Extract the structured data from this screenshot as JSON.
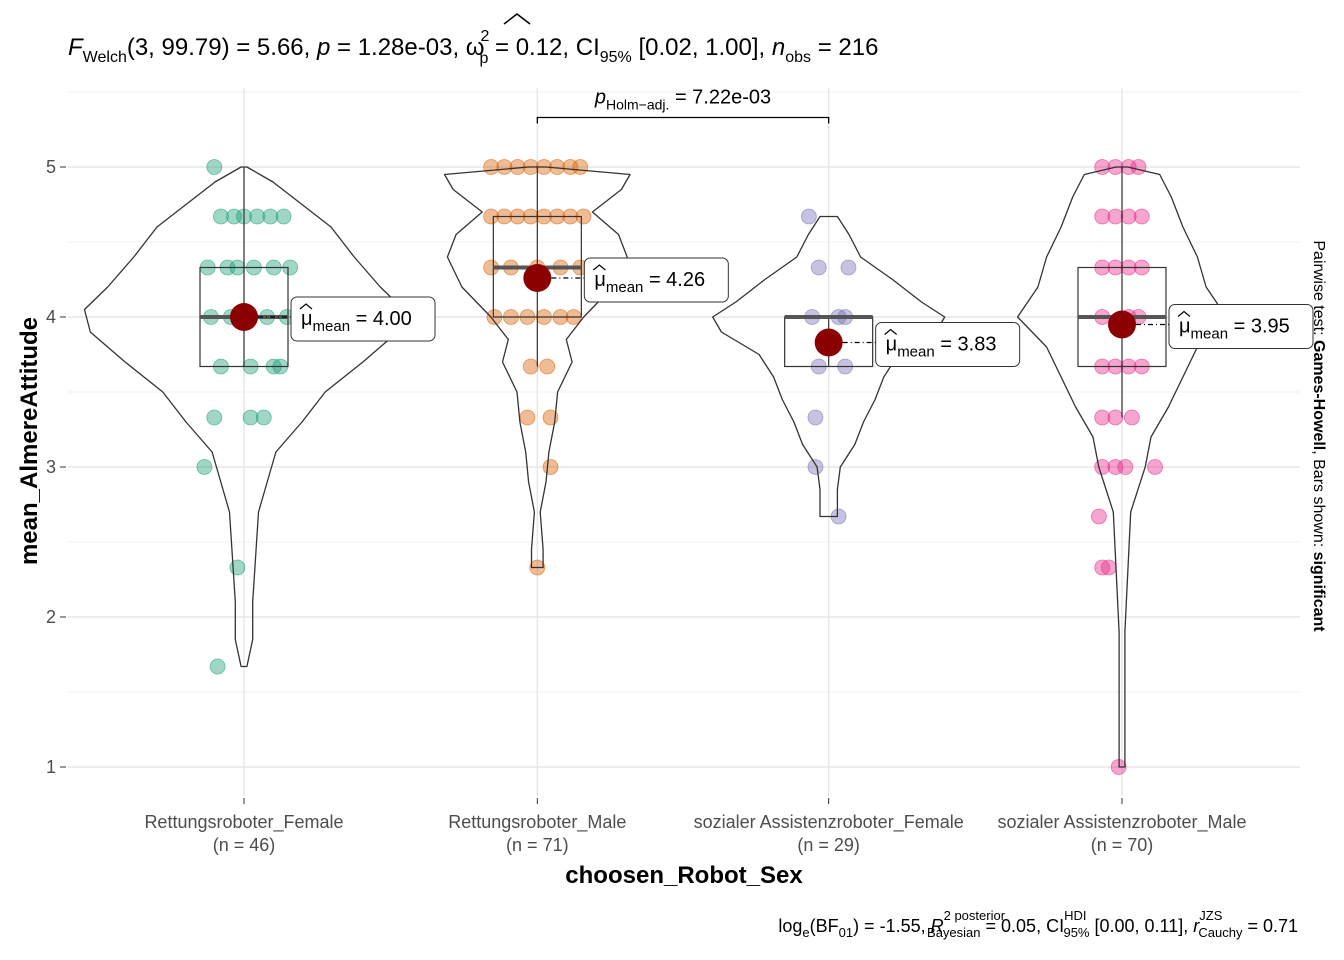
{
  "chart_data": {
    "type": "violin-box-scatter",
    "ylabel": "mean_AlmereAttitude",
    "xlabel": "choosen_Robot_Sex",
    "ylim": [
      0.85,
      5.5
    ],
    "yticks": [
      1,
      2,
      3,
      4,
      5
    ],
    "title": {
      "F": "F",
      "F_sub": "Welch",
      "F_args": "(3, 99.79)",
      "F_value": " = 5.66, ",
      "p": "p",
      "p_value": " = 1.28e-03, ",
      "omega": "ω",
      "omega_sup": "2",
      "omega_sub": "p",
      "omega_value": " = 0.12, CI",
      "ci_sub": "95%",
      "ci_value": " [0.02, 1.00], ",
      "n": "n",
      "n_sub": "obs",
      "n_value": " = 216"
    },
    "comparison": {
      "from": 1,
      "to": 2,
      "y": 5.33,
      "p": "p",
      "p_sub": "Holm−adj.",
      "value": " = 7.22e-03"
    },
    "side_label": {
      "prefix": "Pairwise test: ",
      "test": "Games-Howell",
      "mid": ", Bars shown: ",
      "shown": "significant"
    },
    "caption": {
      "log": "log",
      "log_sub": "e",
      "bf": "(BF",
      "bf_sub": "01",
      "bf_value": ") = -1.55, ",
      "r2": "R",
      "r2_sup": "2 posterior",
      "r2_sub": "Bayesian",
      "r2_value": " = 0.05, CI",
      "ci_sup": "HDI",
      "ci_sub": "95%",
      "ci_value": " [0.00, 0.11], ",
      "r": "r",
      "r_sup": "JZS",
      "r_sub": "Cauchy",
      "r_value": " = 0.71"
    },
    "mean_label": {
      "mu": "μ",
      "sub": "mean"
    },
    "groups": [
      {
        "name": "Rettungsroboter_Female",
        "n_label": "(n = 46)",
        "color": "#1B9E77",
        "mean": 4.0,
        "mean_text": " = 4.00",
        "box": {
          "q1": 3.67,
          "median": 4.0,
          "q3": 4.33,
          "wlo": 3.67,
          "whi": 5.0
        },
        "violin": [
          [
            1.67,
            0.01
          ],
          [
            1.85,
            0.03
          ],
          [
            2.1,
            0.03
          ],
          [
            2.4,
            0.04
          ],
          [
            2.7,
            0.05
          ],
          [
            2.9,
            0.08
          ],
          [
            3.1,
            0.11
          ],
          [
            3.3,
            0.2
          ],
          [
            3.5,
            0.28
          ],
          [
            3.7,
            0.41
          ],
          [
            3.9,
            0.53
          ],
          [
            4.05,
            0.55
          ],
          [
            4.2,
            0.47
          ],
          [
            4.4,
            0.38
          ],
          [
            4.6,
            0.3
          ],
          [
            4.75,
            0.2
          ],
          [
            4.9,
            0.1
          ],
          [
            5.0,
            0.01
          ]
        ],
        "points": [
          [
            5.0,
            -0.09
          ],
          [
            4.67,
            -0.07
          ],
          [
            4.67,
            0.0
          ],
          [
            4.67,
            0.08
          ],
          [
            4.67,
            0.12
          ],
          [
            4.67,
            -0.03
          ],
          [
            4.67,
            0.04
          ],
          [
            4.33,
            -0.11
          ],
          [
            4.33,
            -0.05
          ],
          [
            4.33,
            0.03
          ],
          [
            4.33,
            0.09
          ],
          [
            4.33,
            0.14
          ],
          [
            4.33,
            -0.02
          ],
          [
            4.0,
            -0.1
          ],
          [
            4.0,
            -0.04
          ],
          [
            4.0,
            0.02
          ],
          [
            4.0,
            0.07
          ],
          [
            4.0,
            0.13
          ],
          [
            3.67,
            -0.07
          ],
          [
            3.67,
            0.02
          ],
          [
            3.67,
            0.09
          ],
          [
            3.67,
            0.11
          ],
          [
            3.33,
            -0.09
          ],
          [
            3.33,
            0.02
          ],
          [
            3.33,
            0.06
          ],
          [
            3.0,
            -0.12
          ],
          [
            2.33,
            -0.02
          ],
          [
            1.67,
            -0.08
          ]
        ]
      },
      {
        "name": "Rettungsroboter_Male",
        "n_label": "(n = 71)",
        "color": "#D95F02",
        "mean": 4.26,
        "mean_text": " = 4.26",
        "box": {
          "q1": 4.0,
          "median": 4.33,
          "q3": 4.67,
          "wlo": 3.67,
          "whi": 5.0
        },
        "violin": [
          [
            2.33,
            0.02
          ],
          [
            2.45,
            0.02
          ],
          [
            2.7,
            0.01
          ],
          [
            2.9,
            0.03
          ],
          [
            3.1,
            0.04
          ],
          [
            3.3,
            0.06
          ],
          [
            3.5,
            0.07
          ],
          [
            3.7,
            0.12
          ],
          [
            3.85,
            0.1
          ],
          [
            4.0,
            0.16
          ],
          [
            4.2,
            0.26
          ],
          [
            4.4,
            0.31
          ],
          [
            4.55,
            0.28
          ],
          [
            4.7,
            0.19
          ],
          [
            4.85,
            0.29
          ],
          [
            4.95,
            0.32
          ],
          [
            5.0,
            0.03
          ]
        ],
        "points": [
          [
            5.0,
            -0.14
          ],
          [
            5.0,
            -0.1
          ],
          [
            5.0,
            -0.06
          ],
          [
            5.0,
            -0.02
          ],
          [
            5.0,
            0.02
          ],
          [
            5.0,
            0.06
          ],
          [
            5.0,
            0.1
          ],
          [
            5.0,
            0.13
          ],
          [
            4.67,
            -0.14
          ],
          [
            4.67,
            -0.1
          ],
          [
            4.67,
            -0.06
          ],
          [
            4.67,
            -0.02
          ],
          [
            4.67,
            0.02
          ],
          [
            4.67,
            0.06
          ],
          [
            4.67,
            0.1
          ],
          [
            4.67,
            0.14
          ],
          [
            4.33,
            -0.14
          ],
          [
            4.33,
            -0.08
          ],
          [
            4.33,
            0.0
          ],
          [
            4.33,
            0.07
          ],
          [
            4.33,
            0.13
          ],
          [
            4.0,
            -0.13
          ],
          [
            4.0,
            -0.08
          ],
          [
            4.0,
            -0.03
          ],
          [
            4.0,
            0.02
          ],
          [
            4.0,
            0.07
          ],
          [
            4.0,
            0.11
          ],
          [
            3.67,
            -0.02
          ],
          [
            3.67,
            0.03
          ],
          [
            3.33,
            -0.03
          ],
          [
            3.33,
            0.04
          ],
          [
            3.0,
            0.04
          ],
          [
            2.33,
            0.0
          ]
        ]
      },
      {
        "name": "sozialer Assistenzroboter_Female",
        "n_label": "(n = 29)",
        "color": "#7570B3",
        "mean": 3.83,
        "mean_text": " = 3.83",
        "box": {
          "q1": 3.67,
          "median": 4.0,
          "q3": 4.0,
          "wlo": 3.67,
          "whi": 4.0
        },
        "violin": [
          [
            2.67,
            0.03
          ],
          [
            2.85,
            0.03
          ],
          [
            3.0,
            0.04
          ],
          [
            3.15,
            0.09
          ],
          [
            3.3,
            0.12
          ],
          [
            3.45,
            0.16
          ],
          [
            3.6,
            0.19
          ],
          [
            3.75,
            0.24
          ],
          [
            3.9,
            0.37
          ],
          [
            4.0,
            0.4
          ],
          [
            4.1,
            0.32
          ],
          [
            4.25,
            0.22
          ],
          [
            4.4,
            0.11
          ],
          [
            4.55,
            0.07
          ],
          [
            4.67,
            0.03
          ]
        ],
        "points": [
          [
            4.67,
            -0.06
          ],
          [
            4.33,
            -0.03
          ],
          [
            4.33,
            0.06
          ],
          [
            4.0,
            -0.05
          ],
          [
            4.0,
            0.03
          ],
          [
            4.0,
            0.05
          ],
          [
            3.67,
            -0.03
          ],
          [
            3.67,
            0.05
          ],
          [
            3.33,
            -0.04
          ],
          [
            3.0,
            -0.04
          ],
          [
            2.67,
            0.03
          ]
        ]
      },
      {
        "name": "sozialer Assistenzroboter_Male",
        "n_label": "(n = 70)",
        "color": "#E7298A",
        "mean": 3.95,
        "mean_text": " = 3.95",
        "box": {
          "q1": 3.67,
          "median": 4.0,
          "q3": 4.33,
          "wlo": 3.33,
          "whi": 5.0
        },
        "violin": [
          [
            1.0,
            0.01
          ],
          [
            1.2,
            0.01
          ],
          [
            1.6,
            0.01
          ],
          [
            1.9,
            0.01
          ],
          [
            2.3,
            0.02
          ],
          [
            2.7,
            0.03
          ],
          [
            3.0,
            0.08
          ],
          [
            3.2,
            0.1
          ],
          [
            3.4,
            0.16
          ],
          [
            3.6,
            0.21
          ],
          [
            3.8,
            0.26
          ],
          [
            4.0,
            0.36
          ],
          [
            4.2,
            0.29
          ],
          [
            4.4,
            0.26
          ],
          [
            4.6,
            0.21
          ],
          [
            4.8,
            0.17
          ],
          [
            4.95,
            0.13
          ],
          [
            5.0,
            0.02
          ]
        ],
        "points": [
          [
            5.0,
            -0.06
          ],
          [
            5.0,
            -0.02
          ],
          [
            5.0,
            0.02
          ],
          [
            5.0,
            0.05
          ],
          [
            4.67,
            -0.06
          ],
          [
            4.67,
            -0.02
          ],
          [
            4.67,
            0.02
          ],
          [
            4.67,
            0.06
          ],
          [
            4.33,
            -0.06
          ],
          [
            4.33,
            -0.02
          ],
          [
            4.33,
            0.02
          ],
          [
            4.33,
            0.06
          ],
          [
            4.0,
            -0.06
          ],
          [
            4.0,
            0.02
          ],
          [
            4.0,
            0.05
          ],
          [
            3.67,
            -0.06
          ],
          [
            3.67,
            -0.02
          ],
          [
            3.67,
            0.02
          ],
          [
            3.67,
            0.06
          ],
          [
            3.33,
            -0.06
          ],
          [
            3.33,
            -0.02
          ],
          [
            3.33,
            0.03
          ],
          [
            3.0,
            -0.06
          ],
          [
            3.0,
            -0.02
          ],
          [
            3.0,
            0.01
          ],
          [
            3.0,
            0.1
          ],
          [
            2.67,
            -0.07
          ],
          [
            2.33,
            -0.06
          ],
          [
            2.33,
            -0.04
          ],
          [
            1.0,
            -0.01
          ]
        ]
      }
    ]
  }
}
